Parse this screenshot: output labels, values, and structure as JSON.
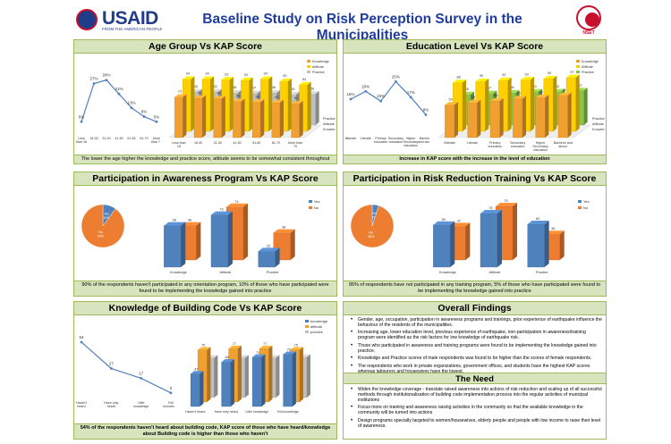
{
  "header": {
    "title": "Baseline Study on Risk Perception Survey in the Municipalities",
    "usaid_word": "USAID",
    "usaid_tagline": "FROM THE AMERICAN PEOPLE",
    "nset_label": "NSET"
  },
  "panels": {
    "age": {
      "title": "Age Group  Vs KAP Score",
      "caption": "The lower the age higher the knowledge and practice score, attitude seems to be somewhat consistent throughout"
    },
    "education": {
      "title": "Education Level  Vs KAP Score",
      "caption": "Increase in KAP score with the increase in the level of education"
    },
    "awareness": {
      "title": "Participation in Awareness Program Vs KAP Score",
      "caption": "90% of the respondents haven't participated in any orientation program, 10% of those who have participated were found to be implementing the knowledge gained into practice"
    },
    "training": {
      "title": "Participation in Risk Reduction Training  Vs KAP Score",
      "caption": "95% of respondents have not participated in any training program, 5% of those who have participated were found to be implementing the knowledge gained into practice"
    },
    "building": {
      "title": "Knowledge of Building Code Vs KAP Score",
      "caption": "54%  of the respondents haven't heard about building code, KAP score of those who have heard/knowledge about Building code is higher than those who haven't"
    }
  },
  "findings": {
    "title": "Overall Findings",
    "items": [
      "Gender, age, occupation, participation in awareness programs and trainings, prior experience of earthquake influence the behaviour of the residents of the municipalities.",
      "Increasing age, lower education level, previous experience of earthquake, non-participation in awareness/training program were identified as the risk factors for low knowledge of earthquake risk.",
      "Those who participated in awareness and training programs were found to be implementing the knowledge gained into practice.",
      "Knowledge and Practice scores of male respondents was found to be higher than the scores of female respondents.",
      "The respondents who work in private organizations, government offices, and students have the highest KAP scores whereas labourers and housewives have the lowest."
    ]
  },
  "need": {
    "title": "The Need",
    "items": [
      "Widen the knowledge coverage - translate raised awareness into actions of risk reduction and scaling up of all successful methods through institutionalization of  building code implementation process into the regular activities of municipal institutions",
      "Focus more on training and awareness raising activities in the community so that the available knowledge in the community will be turned into actions",
      "Design  programs specially targeted to women/housewives, elderly people and people with low income to raise their level of awareness."
    ]
  },
  "colors": {
    "knowledge": "#4f81bd",
    "attitude": "#f0a030",
    "practice": "#bfbfbf",
    "education_knowledge": "#f0a030",
    "education_attitude": "#ffd000",
    "education_practice": "#8bc34a",
    "line": "#4f81bd",
    "pie_yes": "#4f81bd",
    "pie_no": "#ed7d31",
    "panel_header": "#d7e4bd",
    "panel_border": "#9bbb59",
    "title_color": "#1f3c9c"
  },
  "chart_data": [
    {
      "id": "age_distribution",
      "type": "line",
      "categories": [
        "Less than 18",
        "18-30",
        "31-40",
        "41-50",
        "51-60",
        "61-70",
        "More than 70"
      ],
      "values": [
        5,
        27,
        29,
        21,
        13,
        8,
        5
      ],
      "labels": [
        "5%",
        "27%",
        "29%",
        "21%",
        "13%",
        "8%",
        "5%"
      ],
      "title": "",
      "xlabel": "",
      "ylabel": ""
    },
    {
      "id": "age_kap",
      "type": "bar",
      "categories": [
        "Less than 18",
        "18-30",
        "31-40",
        "41-50",
        "51-60",
        "61-70",
        "More than 70"
      ],
      "series": [
        {
          "name": "Knowledge",
          "values": [
            73,
            71,
            70,
            65,
            64,
            63,
            61
          ]
        },
        {
          "name": "Attitude",
          "values": [
            94,
            94,
            93,
            92,
            94,
            90,
            84
          ]
        },
        {
          "name": "Practice",
          "values": [
            60,
            60,
            58,
            57,
            58,
            55,
            56
          ]
        }
      ],
      "depth_labels": [
        "Practice",
        "Attitude",
        "Knowledge"
      ],
      "title": "",
      "xlabel": "",
      "ylabel": ""
    },
    {
      "id": "education_distribution",
      "type": "line",
      "categories": [
        "Illiterate",
        "Literate",
        "Primary education",
        "Secondary education",
        "Higher Secondary education",
        "Bachelor and above"
      ],
      "values": [
        16,
        20,
        15,
        25,
        17,
        8
      ],
      "labels": [
        "16%",
        "20%",
        "15%",
        "25%",
        "17%",
        "8%"
      ],
      "title": "",
      "xlabel": "",
      "ylabel": ""
    },
    {
      "id": "education_kap",
      "type": "bar",
      "categories": [
        "Illiterate",
        "Literate",
        "Primary education",
        "Secondary education",
        "Higher Secondary education",
        "Bachelor and above"
      ],
      "series": [
        {
          "name": "Knowledge",
          "values": [
            59,
            63,
            66,
            70,
            72,
            76
          ]
        },
        {
          "name": "Attitude",
          "values": [
            88,
            90,
            92,
            93,
            95,
            97
          ]
        },
        {
          "name": "Practice",
          "values": [
            55,
            57,
            58,
            60,
            60,
            62
          ]
        }
      ],
      "depth_labels": [
        "Practice",
        "Attitude",
        "Knowledge"
      ],
      "title": "",
      "xlabel": "",
      "ylabel": ""
    },
    {
      "id": "awareness_pie",
      "type": "pie",
      "categories": [
        "Yes",
        "No"
      ],
      "values": [
        10,
        90
      ],
      "labels": [
        "Yes 10%",
        "No 90%"
      ],
      "legend": "right",
      "title": ""
    },
    {
      "id": "awareness_kap",
      "type": "bar",
      "categories": [
        "Knowledge",
        "Attitude",
        "Practice"
      ],
      "series": [
        {
          "name": "Yes",
          "values": [
            58,
            73,
            22
          ]
        },
        {
          "name": "No",
          "values": [
            48,
            74,
            38
          ]
        }
      ],
      "value_labels": [
        [
          "58",
          "73",
          "22"
        ],
        [
          "48",
          "74",
          "38"
        ]
      ],
      "title": "",
      "xlabel": "",
      "ylabel": ""
    },
    {
      "id": "training_pie",
      "type": "pie",
      "categories": [
        "Yes",
        "No"
      ],
      "values": [
        5,
        95
      ],
      "labels": [
        "Yes 5%",
        "No 95%"
      ],
      "legend": "right",
      "title": ""
    },
    {
      "id": "training_kap",
      "type": "bar",
      "categories": [
        "Knowledge",
        "Attitude",
        "Practice"
      ],
      "series": [
        {
          "name": "Yes",
          "values": [
            59,
            75,
            60
          ]
        },
        {
          "name": "No",
          "values": [
            47,
            75,
            36
          ]
        }
      ],
      "value_labels": [
        [
          "59",
          "75",
          "60"
        ],
        [
          "47",
          "75",
          "36"
        ]
      ],
      "title": "",
      "xlabel": "",
      "ylabel": ""
    },
    {
      "id": "building_distribution",
      "type": "line",
      "categories": [
        "Haven't heard",
        "Have only heard",
        "Little knowledge",
        "Full knowledge"
      ],
      "values": [
        54,
        27,
        17,
        2
      ],
      "labels": [
        "54",
        "27",
        "17",
        "2"
      ],
      "title": "",
      "xlabel": "",
      "ylabel": ""
    },
    {
      "id": "building_kap",
      "type": "bar",
      "categories": [
        "Haven't heard",
        "Have only heard",
        "Little knowledge",
        "Full knowledge"
      ],
      "series": [
        {
          "name": "Knowledge",
          "values": [
            47,
            64,
            71,
            75
          ]
        },
        {
          "name": "Attitude",
          "values": [
            75,
            77,
            77,
            75
          ]
        },
        {
          "name": "Practice",
          "values": [
            57,
            57,
            57,
            58
          ]
        }
      ],
      "value_labels": [
        [
          "47",
          "64",
          "71",
          "75"
        ],
        [
          "75",
          "77",
          "77",
          "75"
        ],
        [
          "",
          "",
          "",
          ""
        ]
      ],
      "legend": "top-right",
      "title": "",
      "xlabel": "",
      "ylabel": ""
    }
  ]
}
